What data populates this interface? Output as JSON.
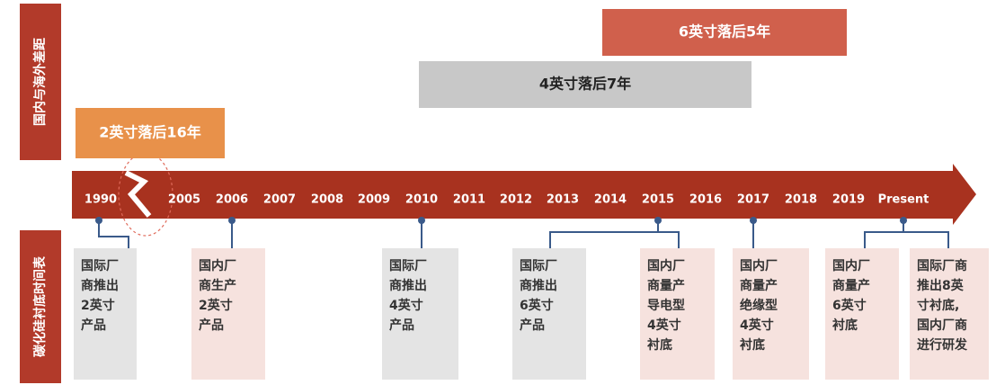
{
  "side_labels": {
    "gap": "国内与海外差距",
    "timeline": "碳化硅衬底时间表"
  },
  "gaps": [
    {
      "label": "2英寸落后16年"
    },
    {
      "label": "4英寸落后7年"
    },
    {
      "label": "6英寸落后5年"
    }
  ],
  "timeline": {
    "labels": [
      "1990",
      "2005",
      "2006",
      "2007",
      "2008",
      "2009",
      "2010",
      "2011",
      "2012",
      "2013",
      "2014",
      "2015",
      "2016",
      "2017",
      "2018",
      "2019",
      "Present"
    ]
  },
  "events": [
    {
      "lines": [
        "国际厂",
        "商推出",
        "2英寸",
        "产品"
      ]
    },
    {
      "lines": [
        "国内厂",
        "商生产",
        "2英寸",
        "产品"
      ]
    },
    {
      "lines": [
        "国际厂",
        "商推出",
        "4英寸",
        "产品"
      ]
    },
    {
      "lines": [
        "国际厂",
        "商推出",
        "6英寸",
        "产品"
      ]
    },
    {
      "lines": [
        "国内厂",
        "商量产",
        "导电型",
        "4英寸",
        "衬底"
      ]
    },
    {
      "lines": [
        "国内厂",
        "商量产",
        "绝缘型",
        "4英寸",
        "衬底"
      ]
    },
    {
      "lines": [
        "国内厂",
        "商量产",
        "6英寸",
        "衬底"
      ]
    },
    {
      "lines": [
        "国际厂商",
        "推出8英",
        "寸衬底,",
        "国内厂商",
        "进行研发"
      ]
    }
  ]
}
